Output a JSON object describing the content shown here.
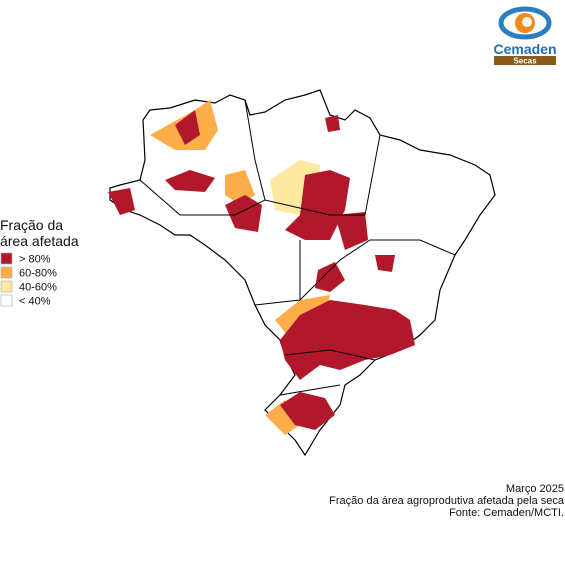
{
  "logo": {
    "name": "Cemaden",
    "tag": "Secas"
  },
  "legend": {
    "title_lines": [
      "Fração da",
      "área afetada"
    ],
    "items": [
      {
        "label": "> 80%",
        "color": "#b2182b"
      },
      {
        "label": "60-80%",
        "color": "#fdae4b"
      },
      {
        "label": "40-60%",
        "color": "#fde9a0"
      },
      {
        "label": "< 40%",
        "color": "#ffffff"
      }
    ]
  },
  "caption": {
    "date": "Março 2025",
    "description": "Fração da área agroprodutiva afetada pela seca",
    "source": "Fonte: Cemaden/MCTI."
  }
}
